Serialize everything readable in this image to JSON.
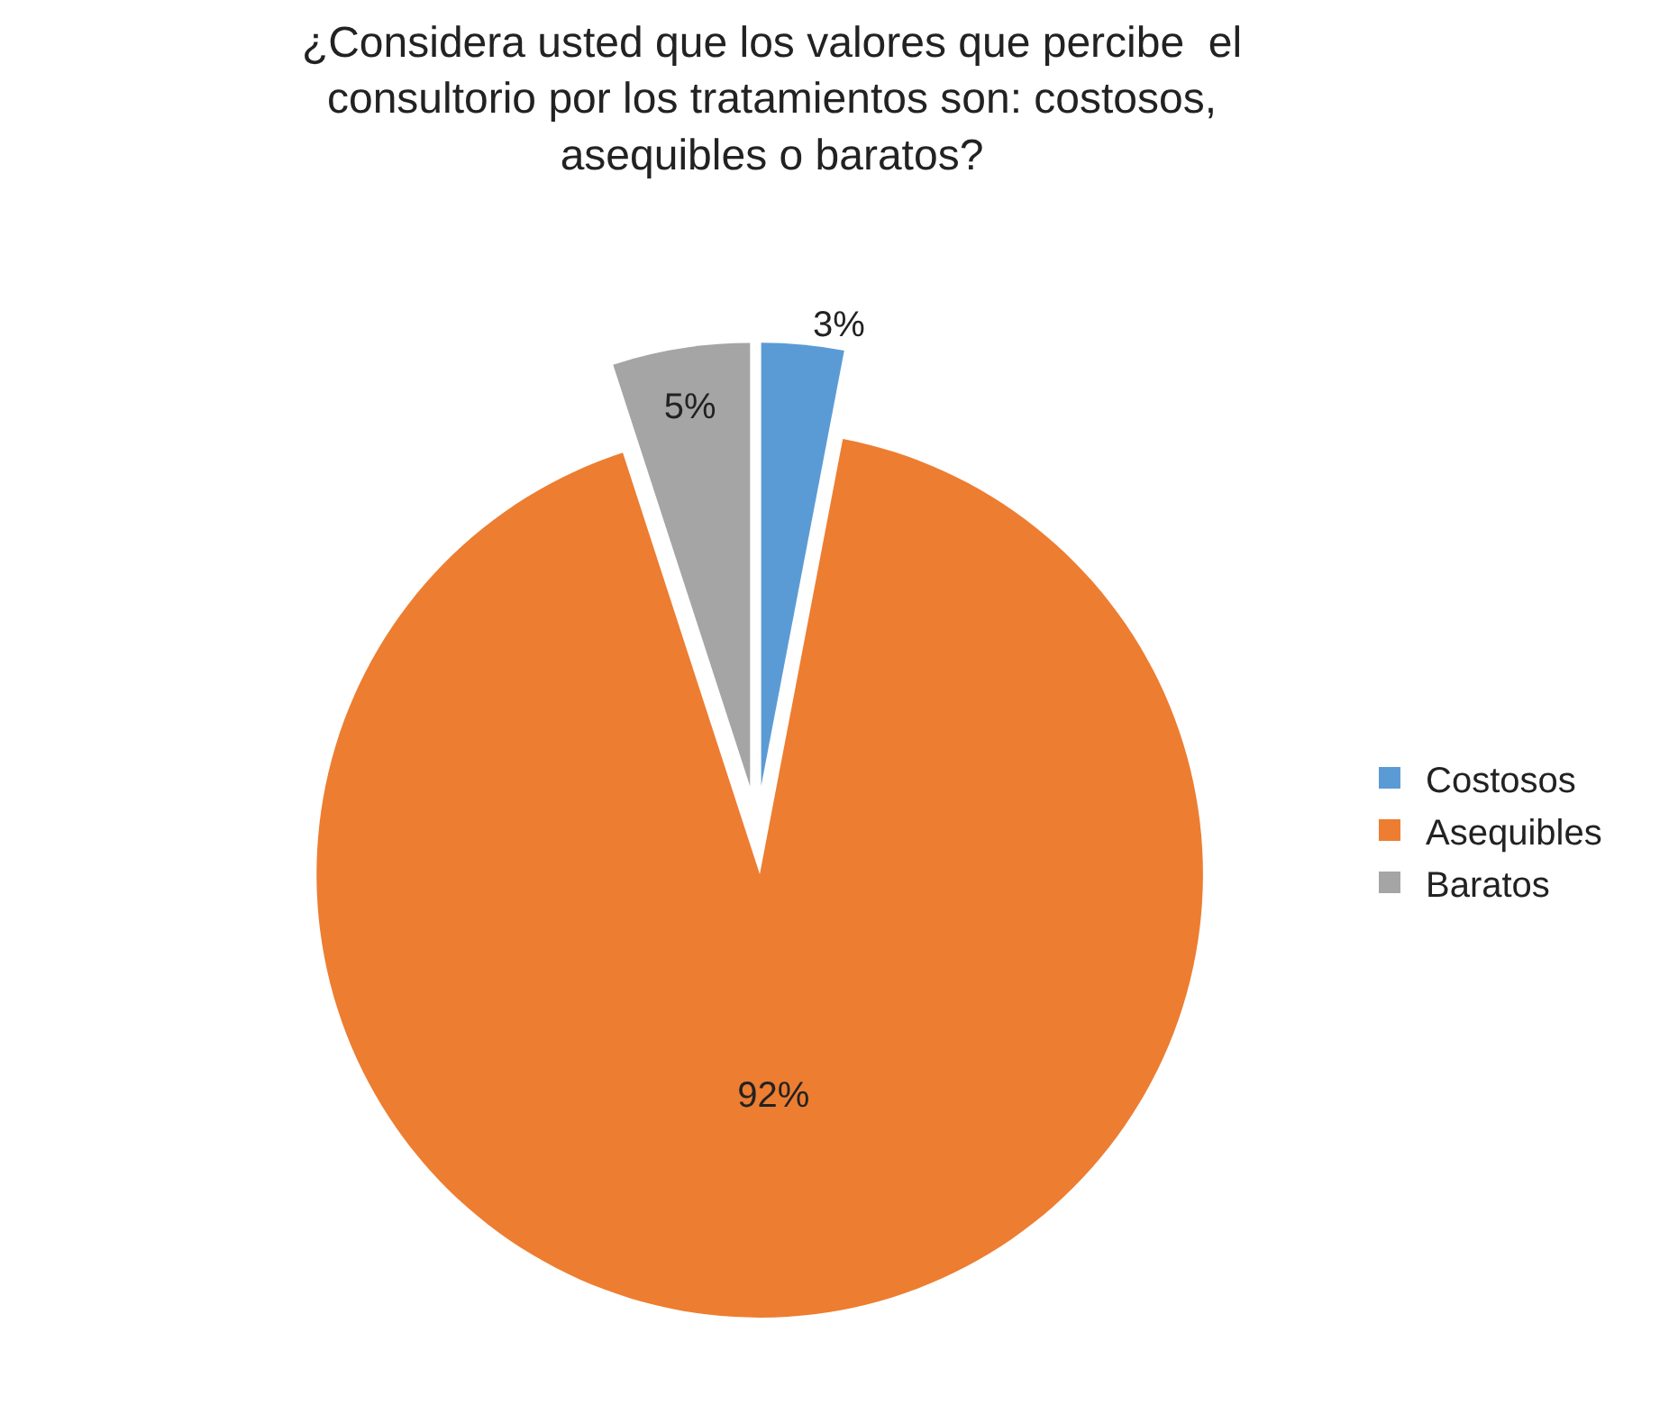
{
  "chart_data": {
    "type": "pie",
    "title": "¿Considera usted que los valores que percibe  el\nconsultorio por los tratamientos son: costosos,\nasequibles o baratos?",
    "categories": [
      "Costosos",
      "Asequibles",
      "Baratos"
    ],
    "values": [
      3,
      92,
      5
    ],
    "colors": [
      "#5b9bd5",
      "#ed7d31",
      "#a5a5a5"
    ],
    "value_labels": [
      "3%",
      "92%",
      "5%"
    ],
    "legend": "right"
  }
}
